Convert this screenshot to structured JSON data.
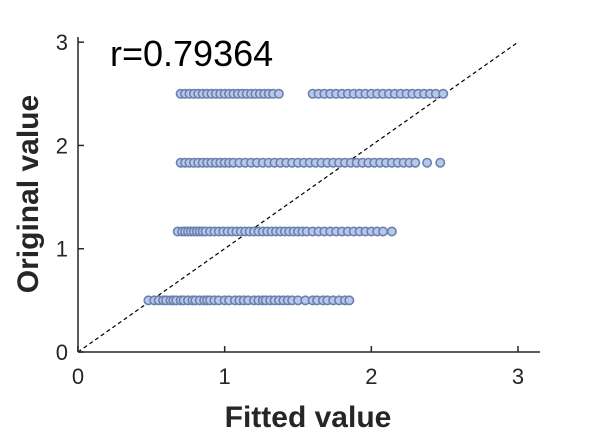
{
  "chart_data": {
    "type": "scatter",
    "xlabel": "Fitted value",
    "ylabel": "Original value",
    "annotation": "r=0.79364",
    "xlim": [
      0,
      3.15
    ],
    "ylim": [
      0,
      3.05
    ],
    "xticks": [
      0,
      1,
      2,
      3
    ],
    "yticks": [
      0,
      1,
      2,
      3
    ],
    "xtick_labels": [
      "0",
      "1",
      "2",
      "3"
    ],
    "ytick_labels": [
      "0",
      "1",
      "2",
      "3"
    ],
    "reference_line": {
      "from": [
        0,
        0
      ],
      "to": [
        3,
        3
      ],
      "style": "dashed"
    },
    "grid": false,
    "colors": {
      "marker_face": "#b7c9e8",
      "marker_edge": "#6a80b0",
      "line": "#000000",
      "axis": "#262626"
    },
    "series": [
      {
        "values_y": 0.5,
        "x": [
          0.48,
          0.52,
          0.55,
          0.58,
          0.6,
          0.63,
          0.65,
          0.67,
          0.7,
          0.72,
          0.75,
          0.78,
          0.8,
          0.83,
          0.86,
          0.88,
          0.9,
          0.93,
          0.96,
          1.0,
          1.03,
          1.07,
          1.1,
          1.13,
          1.16,
          1.2,
          1.23,
          1.26,
          1.28,
          1.31,
          1.34,
          1.37,
          1.4,
          1.43,
          1.46,
          1.5,
          1.55,
          1.6,
          1.63,
          1.67,
          1.7,
          1.74,
          1.78,
          1.82,
          1.85
        ]
      },
      {
        "values_y": 1.167,
        "x": [
          0.68,
          0.71,
          0.73,
          0.75,
          0.77,
          0.79,
          0.81,
          0.83,
          0.85,
          0.87,
          0.9,
          0.93,
          0.96,
          0.99,
          1.02,
          1.05,
          1.08,
          1.11,
          1.14,
          1.17,
          1.2,
          1.23,
          1.26,
          1.29,
          1.32,
          1.35,
          1.38,
          1.41,
          1.44,
          1.47,
          1.5,
          1.53,
          1.56,
          1.6,
          1.64,
          1.68,
          1.72,
          1.76,
          1.8,
          1.84,
          1.88,
          1.92,
          1.96,
          2.0,
          2.04,
          2.08,
          2.14
        ]
      },
      {
        "values_y": 1.833,
        "x": [
          0.7,
          0.73,
          0.76,
          0.79,
          0.82,
          0.85,
          0.88,
          0.91,
          0.94,
          0.97,
          1.0,
          1.03,
          1.06,
          1.1,
          1.14,
          1.18,
          1.22,
          1.26,
          1.3,
          1.34,
          1.38,
          1.42,
          1.46,
          1.5,
          1.54,
          1.58,
          1.62,
          1.66,
          1.7,
          1.74,
          1.78,
          1.82,
          1.86,
          1.9,
          1.94,
          1.98,
          2.02,
          2.06,
          2.1,
          2.14,
          2.18,
          2.22,
          2.26,
          2.3,
          2.38,
          2.47
        ]
      },
      {
        "values_y": 2.5,
        "x": [
          0.7,
          0.73,
          0.76,
          0.79,
          0.82,
          0.85,
          0.88,
          0.91,
          0.94,
          0.97,
          1.0,
          1.03,
          1.06,
          1.09,
          1.12,
          1.15,
          1.18,
          1.21,
          1.24,
          1.27,
          1.3,
          1.33,
          1.37,
          1.6,
          1.64,
          1.68,
          1.72,
          1.76,
          1.8,
          1.84,
          1.88,
          1.92,
          1.96,
          2.0,
          2.04,
          2.08,
          2.12,
          2.16,
          2.2,
          2.24,
          2.28,
          2.32,
          2.36,
          2.4,
          2.44,
          2.49
        ]
      }
    ]
  }
}
